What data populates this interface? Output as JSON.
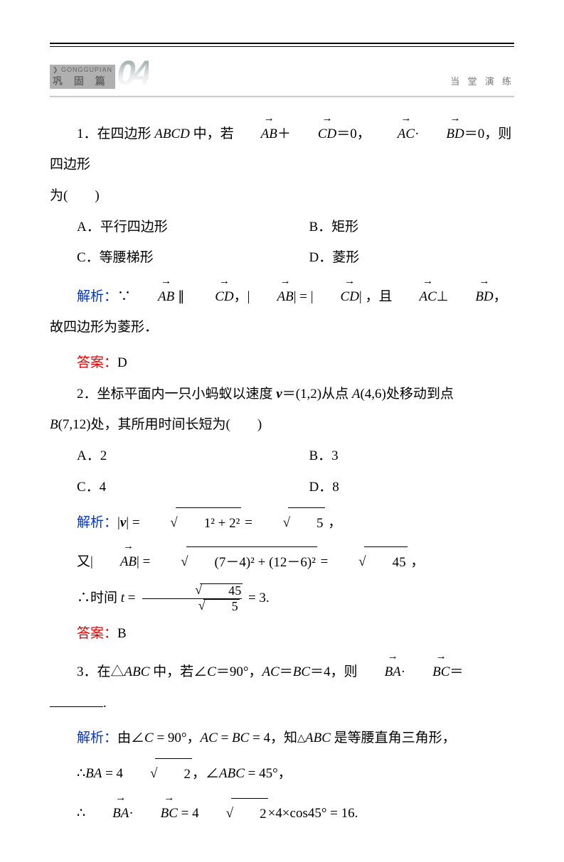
{
  "banner": {
    "pinyin": "❯ GONGGUPIAN",
    "cn": "巩 固 篇",
    "num": "04",
    "right": "当 堂 演 练"
  },
  "q1": {
    "stem_a": "1．在四边形 ",
    "abcd": "ABCD",
    "stem_b": " 中，若",
    "ab": "AB",
    "cd": "CD",
    "plus_eq0": "＋",
    "eq0": "＝0，",
    "ac": "AC",
    "bd": "BD",
    "dot": "·",
    "eq0b": "＝0，则四边形",
    "tail": "为(　　)",
    "optA": "A．平行四边形",
    "optB": "B．矩形",
    "optC": "C．等腰梯形",
    "optD": "D．菱形",
    "jiexi_label": "解析：",
    "j1_a": "∵",
    "j1_b": " ∥ ",
    "j1_c": "，|",
    "j1_d": "| = |",
    "j1_e": "| ，且",
    "j1_f": "⊥",
    "j1_g": "，故四边形为菱形．",
    "ans_label": "答案：",
    "ans": "D"
  },
  "q2": {
    "stem_a": "2．坐标平面内一只小蚂蚁以速度 ",
    "v": "v",
    "veq": "＝(1,2)从点 ",
    "A": "A",
    "Aval": "(4,6)处移动到点",
    "line2_a": "B",
    "line2_b": "(7,12)处，其所用时间长短为(　　)",
    "optA": "A．2",
    "optB": "B．3",
    "optC": "C．4",
    "optD": "D．8",
    "jiexi_label": "解析：",
    "vmag_a": "|",
    "vmag_b": "| = ",
    "sqrt1_body": "1² + 2²",
    "eq1": " = ",
    "sqrt5": "5",
    "comma": " ，",
    "line_ab_a": "又|",
    "line_ab_b": "| = ",
    "sqrt2_body": "(7－4)² + (12－6)²",
    "eq2": " = ",
    "sqrt45": "45",
    "comma2": " ，",
    "time_a": "∴时间 ",
    "t": "t",
    "time_b": " = ",
    "frac_num": "45",
    "frac_den": "5",
    "time_c": " = 3.",
    "ans_label": "答案：",
    "ans": "B"
  },
  "q3": {
    "stem_a": "3．在△",
    "abc": "ABC",
    "stem_b": " 中，若∠",
    "C": "C",
    "stem_c": "＝90°，",
    "ac": "AC",
    "stem_d": "＝",
    "bc": "BC",
    "stem_e": "＝4，则",
    "ba": "BA",
    "dot": "·",
    "bc2": "BC",
    "stem_f": "＝",
    "period": ".",
    "jiexi_label": "解析：",
    "j_a": "由∠",
    "j_b": " = 90°，",
    "j_c": " = ",
    "j_d": " = 4，知",
    "j_e": " 是等腰直角三角形，",
    "l2_a": "∴",
    "l2_b": " = 4",
    "sqrt2": "2",
    "l2_c": "，∠",
    "l2_abc": "ABC",
    "l2_d": " = 45°，",
    "l3_a": "∴",
    "l3_b": " = 4",
    "l3_c": "×4×cos45° = 16."
  }
}
